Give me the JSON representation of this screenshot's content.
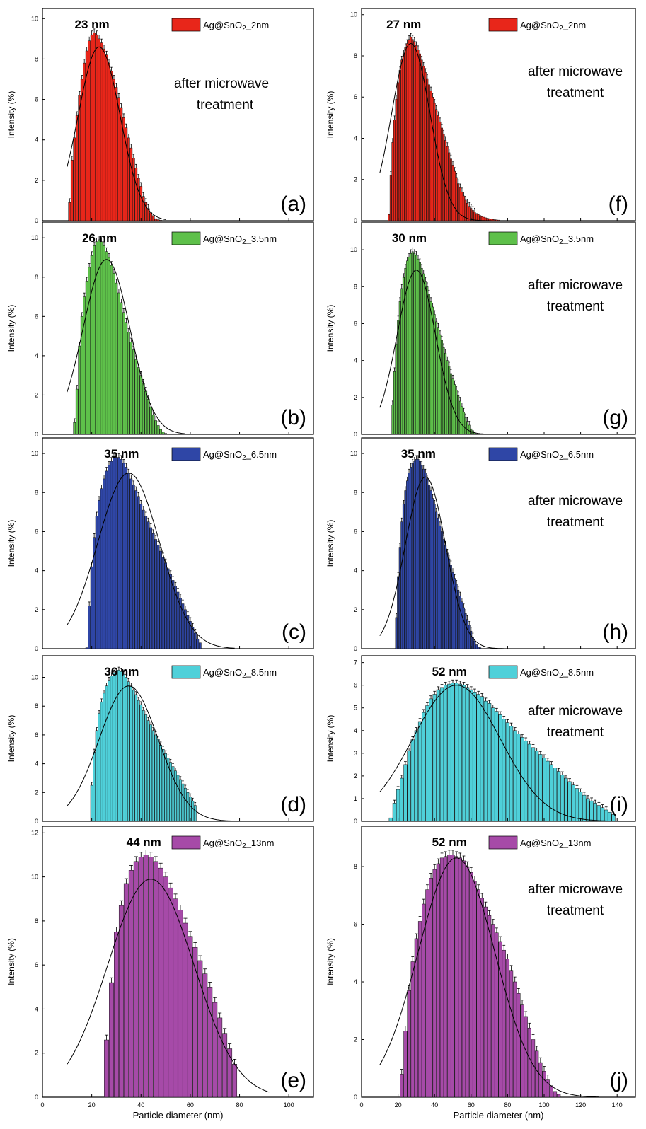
{
  "figure": {
    "xlabel": "Particle diameter (nm)",
    "ylabel": "Intensity (%)",
    "after_line1": "after microwave",
    "after_line2": "treatment",
    "colors": {
      "red": "#e8261a",
      "green": "#5ec04a",
      "blue": "#2f46a6",
      "cyan": "#4fd0d9",
      "purple": "#a64aa8"
    }
  },
  "chart_data": [
    {
      "type": "bar",
      "panel": "(a)",
      "legend": "Ag@SnO2_2nm",
      "peak_label": "23  nm",
      "after_treatment": false,
      "color": "#e8261a",
      "xlim": [
        0,
        110
      ],
      "ylim": [
        0,
        10.5
      ],
      "yticks": [
        0,
        2,
        4,
        6,
        8,
        10
      ],
      "xticks": [
        0,
        20,
        40,
        60,
        80,
        100
      ],
      "x": [
        11,
        12,
        13,
        14,
        15,
        16,
        17,
        18,
        19,
        20,
        21,
        22,
        23,
        24,
        25,
        26,
        27,
        28,
        29,
        30,
        31,
        32,
        33,
        34,
        35,
        36,
        37,
        38,
        39,
        40,
        41,
        42,
        43,
        44,
        45,
        46,
        47,
        48
      ],
      "values": [
        0.9,
        3.0,
        4.1,
        5.2,
        6.2,
        7.0,
        7.8,
        8.4,
        8.9,
        9.2,
        9.3,
        9.2,
        9.0,
        8.8,
        8.5,
        8.2,
        7.8,
        7.4,
        7.0,
        6.6,
        6.1,
        5.6,
        5.1,
        4.6,
        4.1,
        3.6,
        3.1,
        2.6,
        2.1,
        1.7,
        1.2,
        0.9,
        0.6,
        0.4,
        0.25,
        0.1,
        0.05,
        0.02
      ],
      "fit": {
        "mu": 23,
        "sigma": 8.5,
        "amp": 8.6,
        "x_range": [
          10,
          50
        ]
      }
    },
    {
      "type": "bar",
      "panel": "(b)",
      "legend": "Ag@SnO2_3.5nm",
      "peak_label": "26 nm",
      "after_treatment": false,
      "color": "#5ec04a",
      "xlim": [
        0,
        110
      ],
      "ylim": [
        0,
        10.8
      ],
      "yticks": [
        0,
        2,
        4,
        6,
        8,
        10
      ],
      "xticks": [
        0,
        20,
        40,
        60,
        80,
        100
      ],
      "x": [
        13,
        14,
        15,
        16,
        17,
        18,
        19,
        20,
        21,
        22,
        23,
        24,
        25,
        26,
        27,
        28,
        29,
        30,
        31,
        32,
        33,
        34,
        35,
        36,
        37,
        38,
        39,
        40,
        41,
        42,
        43,
        44,
        45,
        46,
        47,
        48,
        49,
        50,
        51
      ],
      "values": [
        0.6,
        2.3,
        4.5,
        6.0,
        7.0,
        7.8,
        8.5,
        9.1,
        9.6,
        9.8,
        9.9,
        9.8,
        9.6,
        9.3,
        9.0,
        8.6,
        8.2,
        7.7,
        7.2,
        6.7,
        6.2,
        5.7,
        5.2,
        4.7,
        4.3,
        3.8,
        3.4,
        3.0,
        2.6,
        2.2,
        1.8,
        1.4,
        1.0,
        0.7,
        0.45,
        0.25,
        0.12,
        0.05,
        0.02
      ],
      "fit": {
        "mu": 26,
        "sigma": 9.5,
        "amp": 8.9,
        "x_range": [
          10,
          58
        ]
      }
    },
    {
      "type": "bar",
      "panel": "(c)",
      "legend": "Ag@SnO2_6.5nm",
      "peak_label": "35 nm",
      "after_treatment": false,
      "color": "#2f46a6",
      "xlim": [
        0,
        110
      ],
      "ylim": [
        0,
        10.8
      ],
      "yticks": [
        0,
        2,
        4,
        6,
        8,
        10
      ],
      "xticks": [
        0,
        20,
        40,
        60,
        80,
        100
      ],
      "x": [
        18,
        19,
        20,
        21,
        22,
        23,
        24,
        25,
        26,
        27,
        28,
        29,
        30,
        31,
        32,
        33,
        34,
        35,
        36,
        37,
        38,
        39,
        40,
        41,
        42,
        43,
        44,
        45,
        46,
        47,
        48,
        49,
        50,
        51,
        52,
        53,
        54,
        55,
        56,
        57,
        58,
        59,
        60,
        61,
        62,
        63,
        64
      ],
      "values": [
        0.05,
        2.2,
        4.2,
        5.7,
        6.8,
        7.6,
        8.2,
        8.7,
        9.1,
        9.4,
        9.6,
        9.8,
        9.8,
        9.8,
        9.7,
        9.5,
        9.3,
        9.0,
        8.7,
        8.4,
        8.1,
        7.8,
        7.4,
        7.1,
        6.8,
        6.5,
        6.2,
        5.9,
        5.6,
        5.3,
        5.0,
        4.7,
        4.4,
        4.1,
        3.8,
        3.5,
        3.2,
        2.9,
        2.6,
        2.3,
        2.0,
        1.7,
        1.4,
        1.1,
        0.8,
        0.5,
        0.3
      ],
      "fit": {
        "mu": 35,
        "sigma": 12.5,
        "amp": 9.0,
        "x_range": [
          10,
          78
        ]
      }
    },
    {
      "type": "bar",
      "panel": "(d)",
      "legend": "Ag@SnO2_8.5nm",
      "peak_label": "36 nm",
      "after_treatment": false,
      "color": "#4fd0d9",
      "xlim": [
        0,
        110
      ],
      "ylim": [
        0,
        11.5
      ],
      "yticks": [
        0,
        2,
        4,
        6,
        8,
        10
      ],
      "xticks": [
        0,
        20,
        40,
        60,
        80,
        100
      ],
      "x": [
        20,
        21,
        22,
        23,
        24,
        25,
        26,
        27,
        28,
        29,
        30,
        31,
        32,
        33,
        34,
        35,
        36,
        37,
        38,
        39,
        40,
        41,
        42,
        43,
        44,
        45,
        46,
        47,
        48,
        49,
        50,
        51,
        52,
        53,
        54,
        55,
        56,
        57,
        58,
        59,
        60,
        61,
        62
      ],
      "values": [
        2.5,
        4.8,
        6.3,
        7.5,
        8.3,
        8.9,
        9.4,
        9.8,
        10.1,
        10.3,
        10.4,
        10.5,
        10.4,
        10.2,
        10.0,
        9.7,
        9.4,
        9.1,
        8.8,
        8.4,
        8.1,
        7.7,
        7.4,
        7.0,
        6.7,
        6.3,
        6.0,
        5.7,
        5.3,
        5.0,
        4.7,
        4.4,
        4.1,
        3.8,
        3.5,
        3.2,
        2.9,
        2.6,
        2.3,
        2.0,
        1.7,
        1.4,
        1.1
      ],
      "fit": {
        "mu": 35,
        "sigma": 12.0,
        "amp": 9.4,
        "x_range": [
          10,
          78
        ]
      }
    },
    {
      "type": "bar",
      "panel": "(e)",
      "legend": "Ag@SnO2_13nm",
      "peak_label": "44 nm",
      "after_treatment": false,
      "color": "#a64aa8",
      "xlim": [
        0,
        110
      ],
      "ylim": [
        0,
        12.3
      ],
      "yticks": [
        0,
        2,
        4,
        6,
        8,
        10,
        12
      ],
      "xticks": [
        0,
        20,
        40,
        60,
        80,
        100
      ],
      "x": [
        26,
        28,
        30,
        32,
        34,
        36,
        38,
        40,
        42,
        44,
        46,
        48,
        50,
        52,
        54,
        56,
        58,
        60,
        62,
        64,
        66,
        68,
        70,
        72,
        74,
        76,
        78
      ],
      "values": [
        2.6,
        5.2,
        7.5,
        8.7,
        9.7,
        10.3,
        10.7,
        10.9,
        11.0,
        10.9,
        10.7,
        10.4,
        10.0,
        9.5,
        9.0,
        8.5,
        7.9,
        7.3,
        6.8,
        6.2,
        5.6,
        5.0,
        4.3,
        3.6,
        2.9,
        2.2,
        1.5
      ],
      "fit": {
        "mu": 44,
        "sigma": 17.5,
        "amp": 9.9,
        "x_range": [
          10,
          92
        ]
      }
    },
    {
      "type": "bar",
      "panel": "(f)",
      "legend": "Ag@SnO2_2nm",
      "peak_label": "27 nm",
      "after_treatment": true,
      "color": "#e8261a",
      "xlim": [
        0,
        150
      ],
      "ylim": [
        0,
        10.3
      ],
      "yticks": [
        0,
        2,
        4,
        6,
        8,
        10
      ],
      "xticks": [
        0,
        20,
        40,
        60,
        80,
        100,
        120,
        140
      ],
      "x": [
        15,
        16,
        17,
        18,
        19,
        20,
        21,
        22,
        23,
        24,
        25,
        26,
        27,
        28,
        29,
        30,
        31,
        32,
        33,
        34,
        35,
        36,
        37,
        38,
        39,
        40,
        41,
        42,
        43,
        44,
        45,
        46,
        47,
        48,
        49,
        50,
        51,
        52,
        53,
        54,
        55,
        56,
        57,
        58,
        59,
        60,
        61,
        62,
        63,
        64,
        65,
        66,
        67,
        68,
        69,
        70,
        71,
        72,
        73,
        74,
        75
      ],
      "values": [
        0.3,
        2.2,
        3.8,
        4.9,
        5.9,
        6.7,
        7.3,
        7.8,
        8.1,
        8.4,
        8.6,
        8.8,
        8.9,
        8.8,
        8.7,
        8.5,
        8.3,
        8.1,
        7.8,
        7.5,
        7.2,
        6.9,
        6.6,
        6.3,
        6.0,
        5.7,
        5.4,
        5.1,
        4.8,
        4.5,
        4.2,
        3.9,
        3.6,
        3.3,
        3.0,
        2.7,
        2.4,
        2.1,
        1.8,
        1.6,
        1.4,
        1.2,
        1.0,
        0.85,
        0.7,
        0.6,
        0.5,
        0.42,
        0.35,
        0.3,
        0.25,
        0.2,
        0.17,
        0.14,
        0.12,
        0.1,
        0.08,
        0.06,
        0.05,
        0.04,
        0.03
      ],
      "fit": {
        "mu": 27,
        "sigma": 10.5,
        "amp": 8.6,
        "x_range": [
          10,
          72
        ]
      }
    },
    {
      "type": "bar",
      "panel": "(g)",
      "legend": "Ag@SnO2_3.5nm",
      "peak_label": "30 nm",
      "after_treatment": true,
      "color": "#5ec04a",
      "xlim": [
        0,
        150
      ],
      "ylim": [
        0,
        11.5
      ],
      "yticks": [
        0,
        2,
        4,
        6,
        8,
        10
      ],
      "xticks": [
        0,
        20,
        40,
        60,
        80,
        100,
        120,
        140
      ],
      "x": [
        17,
        18,
        19,
        20,
        21,
        22,
        23,
        24,
        25,
        26,
        27,
        28,
        29,
        30,
        31,
        32,
        33,
        34,
        35,
        36,
        37,
        38,
        39,
        40,
        41,
        42,
        43,
        44,
        45,
        46,
        47,
        48,
        49,
        50,
        51,
        52,
        53,
        54,
        55,
        56,
        57,
        58,
        59,
        60,
        61,
        62
      ],
      "values": [
        1.6,
        3.4,
        4.9,
        6.2,
        7.2,
        7.9,
        8.5,
        9.0,
        9.4,
        9.6,
        9.8,
        9.9,
        9.8,
        9.7,
        9.5,
        9.3,
        9.0,
        8.7,
        8.3,
        8.0,
        7.6,
        7.2,
        6.9,
        6.5,
        6.1,
        5.8,
        5.4,
        5.1,
        4.7,
        4.4,
        4.0,
        3.7,
        3.3,
        3.0,
        2.7,
        2.4,
        2.1,
        1.8,
        1.5,
        1.2,
        0.9,
        0.7,
        0.5,
        0.3,
        0.2,
        0.1
      ],
      "fit": {
        "mu": 30,
        "sigma": 10.5,
        "amp": 8.9,
        "x_range": [
          10,
          72
        ]
      }
    },
    {
      "type": "bar",
      "panel": "(h)",
      "legend": "Ag@SnO2_6.5nm",
      "peak_label": "35 nm",
      "after_treatment": true,
      "color": "#2f46a6",
      "xlim": [
        0,
        150
      ],
      "ylim": [
        0,
        10.8
      ],
      "yticks": [
        0,
        2,
        4,
        6,
        8,
        10
      ],
      "xticks": [
        0,
        20,
        40,
        60,
        80,
        100,
        120,
        140
      ],
      "x": [
        19,
        20,
        21,
        22,
        23,
        24,
        25,
        26,
        27,
        28,
        29,
        30,
        31,
        32,
        33,
        34,
        35,
        36,
        37,
        38,
        39,
        40,
        41,
        42,
        43,
        44,
        45,
        46,
        47,
        48,
        49,
        50,
        51,
        52,
        53,
        54,
        55,
        56,
        57,
        58,
        59,
        60,
        61,
        62,
        63,
        64,
        65
      ],
      "values": [
        1.6,
        3.7,
        5.2,
        6.5,
        7.4,
        8.1,
        8.6,
        9.0,
        9.3,
        9.5,
        9.6,
        9.7,
        9.7,
        9.6,
        9.4,
        9.2,
        9.0,
        8.7,
        8.4,
        8.1,
        7.7,
        7.4,
        7.0,
        6.7,
        6.3,
        6.0,
        5.6,
        5.3,
        4.9,
        4.6,
        4.3,
        3.9,
        3.6,
        3.3,
        3.0,
        2.7,
        2.4,
        2.1,
        1.8,
        1.5,
        1.2,
        0.9,
        0.6,
        0.4,
        0.2,
        0.1,
        0.05
      ],
      "fit": {
        "mu": 35,
        "sigma": 11.0,
        "amp": 8.8,
        "x_range": [
          10,
          78
        ]
      }
    },
    {
      "type": "bar",
      "panel": "(i)",
      "legend": "Ag@SnO2_8.5nm",
      "peak_label": "52 nm",
      "after_treatment": true,
      "color": "#4fd0d9",
      "xlim": [
        0,
        150
      ],
      "ylim": [
        0,
        7.3
      ],
      "yticks": [
        0,
        1,
        2,
        3,
        4,
        5,
        6,
        7
      ],
      "xticks": [
        0,
        20,
        40,
        60,
        80,
        100,
        120,
        140
      ],
      "x": [
        16,
        18,
        20,
        22,
        24,
        26,
        28,
        30,
        32,
        34,
        36,
        38,
        40,
        42,
        44,
        46,
        48,
        50,
        52,
        54,
        56,
        58,
        60,
        62,
        64,
        66,
        68,
        70,
        72,
        74,
        76,
        78,
        80,
        82,
        84,
        86,
        88,
        90,
        92,
        94,
        96,
        98,
        100,
        102,
        104,
        106,
        108,
        110,
        112,
        114,
        116,
        118,
        120,
        122,
        124,
        126,
        128,
        130,
        132,
        134,
        136,
        138
      ],
      "values": [
        0.15,
        0.8,
        1.4,
        1.9,
        2.5,
        3.1,
        3.6,
        4.0,
        4.4,
        4.8,
        5.1,
        5.4,
        5.6,
        5.8,
        5.9,
        6.0,
        6.05,
        6.1,
        6.1,
        6.05,
        6.0,
        5.9,
        5.8,
        5.7,
        5.6,
        5.5,
        5.3,
        5.2,
        5.0,
        4.85,
        4.7,
        4.5,
        4.35,
        4.2,
        4.0,
        3.85,
        3.7,
        3.55,
        3.4,
        3.25,
        3.1,
        2.95,
        2.8,
        2.65,
        2.5,
        2.35,
        2.2,
        2.05,
        1.9,
        1.75,
        1.6,
        1.45,
        1.3,
        1.15,
        1.0,
        0.9,
        0.8,
        0.7,
        0.6,
        0.5,
        0.4,
        0.3
      ],
      "fit": {
        "mu": 52,
        "sigma": 24.0,
        "amp": 6.0,
        "x_range": [
          10,
          138
        ]
      }
    },
    {
      "type": "bar",
      "panel": "(j)",
      "legend": "Ag@SnO2_13nm",
      "peak_label": "52 nm",
      "after_treatment": true,
      "color": "#a64aa8",
      "xlim": [
        0,
        150
      ],
      "ylim": [
        0,
        9.4
      ],
      "yticks": [
        0,
        2,
        4,
        6,
        8
      ],
      "xticks": [
        0,
        20,
        40,
        60,
        80,
        100,
        120,
        140
      ],
      "x": [
        22,
        24,
        26,
        28,
        30,
        32,
        34,
        36,
        38,
        40,
        42,
        44,
        46,
        48,
        50,
        52,
        54,
        56,
        58,
        60,
        62,
        64,
        66,
        68,
        70,
        72,
        74,
        76,
        78,
        80,
        82,
        84,
        86,
        88,
        90,
        92,
        94,
        96,
        98,
        100,
        102,
        104,
        106,
        108
      ],
      "values": [
        0.8,
        2.3,
        3.7,
        4.7,
        5.5,
        6.1,
        6.7,
        7.2,
        7.6,
        7.9,
        8.1,
        8.3,
        8.35,
        8.4,
        8.4,
        8.35,
        8.3,
        8.2,
        8.0,
        7.8,
        7.5,
        7.2,
        6.9,
        6.6,
        6.3,
        6.0,
        5.7,
        5.4,
        5.1,
        4.8,
        4.4,
        4.0,
        3.6,
        3.2,
        2.8,
        2.4,
        2.0,
        1.6,
        1.2,
        0.9,
        0.6,
        0.4,
        0.2,
        0.1
      ],
      "fit": {
        "mu": 52,
        "sigma": 21.0,
        "amp": 8.3,
        "x_range": [
          10,
          130
        ]
      }
    }
  ]
}
